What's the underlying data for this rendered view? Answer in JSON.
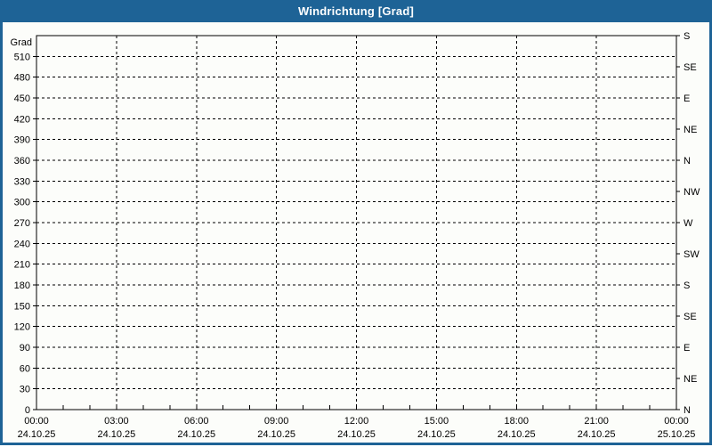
{
  "header": {
    "title": "Windrichtung [Grad]"
  },
  "colors": {
    "frame": "#1e6396",
    "header_text": "#ffffff",
    "plot_bg": "#fcfdfa",
    "grid": "#000000"
  },
  "chart_data": {
    "type": "line",
    "title": "Windrichtung [Grad]",
    "ylabel": "Grad",
    "ylim": [
      0,
      540
    ],
    "y_tick_step": 30,
    "y_ticks": [
      0,
      30,
      60,
      90,
      120,
      150,
      180,
      210,
      240,
      270,
      300,
      330,
      360,
      390,
      420,
      450,
      480,
      510
    ],
    "right_axis_ticks": [
      {
        "deg": 0,
        "dir": "N"
      },
      {
        "deg": 45,
        "dir": "NE"
      },
      {
        "deg": 90,
        "dir": "E"
      },
      {
        "deg": 135,
        "dir": "SE"
      },
      {
        "deg": 180,
        "dir": "S"
      },
      {
        "deg": 225,
        "dir": "SW"
      },
      {
        "deg": 270,
        "dir": "W"
      },
      {
        "deg": 315,
        "dir": "NW"
      },
      {
        "deg": 360,
        "dir": "N"
      },
      {
        "deg": 405,
        "dir": "NE"
      },
      {
        "deg": 450,
        "dir": "E"
      },
      {
        "deg": 495,
        "dir": "SE"
      },
      {
        "deg": 540,
        "dir": "S"
      }
    ],
    "xlim_hours": [
      0,
      24
    ],
    "x_minor_tick_hours": 1,
    "x_major_ticks": [
      {
        "hour": 0,
        "time": "00:00",
        "date": "24.10.25"
      },
      {
        "hour": 3,
        "time": "03:00",
        "date": "24.10.25"
      },
      {
        "hour": 6,
        "time": "06:00",
        "date": "24.10.25"
      },
      {
        "hour": 9,
        "time": "09:00",
        "date": "24.10.25"
      },
      {
        "hour": 12,
        "time": "12:00",
        "date": "24.10.25"
      },
      {
        "hour": 15,
        "time": "15:00",
        "date": "24.10.25"
      },
      {
        "hour": 18,
        "time": "18:00",
        "date": "24.10.25"
      },
      {
        "hour": 21,
        "time": "21:00",
        "date": "24.10.25"
      },
      {
        "hour": 24,
        "time": "00:00",
        "date": "25.10.25"
      }
    ],
    "grid": true,
    "grid_style": "dashed",
    "legend": null,
    "series": []
  }
}
